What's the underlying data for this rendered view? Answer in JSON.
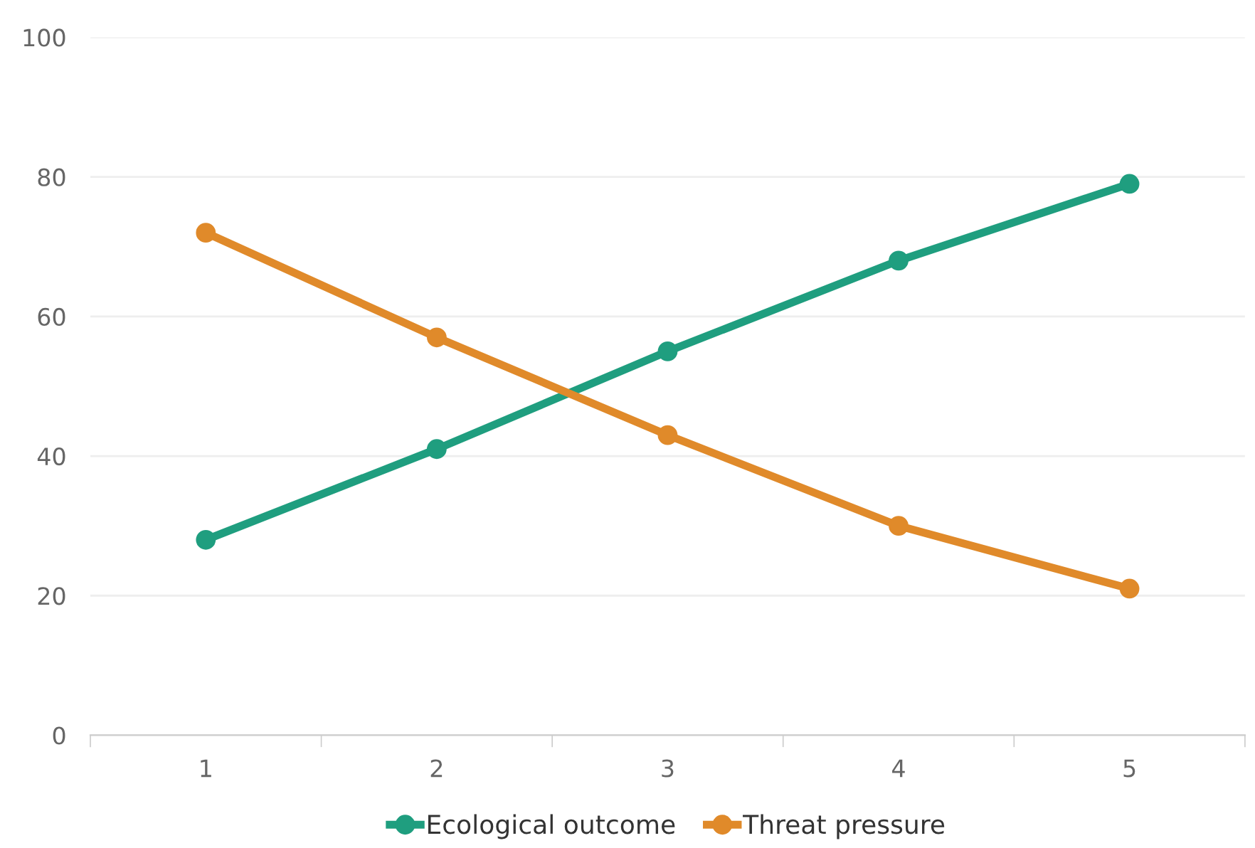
{
  "chart_data": {
    "type": "line",
    "categories": [
      "1",
      "2",
      "3",
      "4",
      "5"
    ],
    "series": [
      {
        "name": "Ecological outcome",
        "color": "#1f9e7f",
        "values": [
          28,
          41,
          55,
          68,
          79
        ]
      },
      {
        "name": "Threat pressure",
        "color": "#e08a2a",
        "values": [
          72,
          57,
          43,
          30,
          21
        ]
      }
    ],
    "ylim": [
      0,
      100
    ],
    "yticks": [
      0,
      20,
      40,
      60,
      80,
      100
    ],
    "grid": "y",
    "legend": "bottom",
    "marker": "circle",
    "line_style": "solid"
  }
}
